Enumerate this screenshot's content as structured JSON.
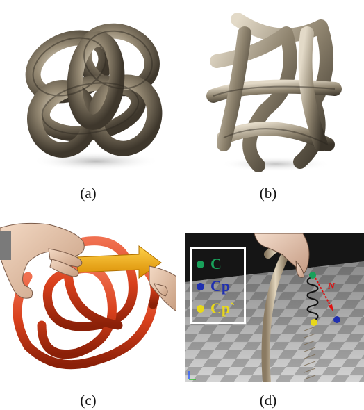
{
  "figure": {
    "panels": [
      {
        "id": "a",
        "label": "(a)",
        "subject": "metal knot sculpture, rounded"
      },
      {
        "id": "b",
        "label": "(b)",
        "subject": "metal knot sculpture, angular"
      },
      {
        "id": "c",
        "label": "(c)",
        "subject": "red rope knot manipulated by virtual hands with yellow arrow"
      },
      {
        "id": "d",
        "label": "(d)",
        "subject": "virtual hand pulling rope on checkered floor with spring"
      }
    ],
    "legend": {
      "items": [
        {
          "symbol": "C",
          "color": "#18a05a"
        },
        {
          "symbol": "Cp",
          "color": "#1f2fb0"
        },
        {
          "symbol": "Cp`",
          "color": "#e8d81a"
        }
      ],
      "vector_label": "N"
    },
    "colors": {
      "metal": "#8a7e6a",
      "rope_red": "#d8401c",
      "arrow_yellow": "#f2b015",
      "floor_dark": "#5a5a5a",
      "floor_light": "#d0d0d0",
      "sky": "#1a1a1a"
    }
  }
}
